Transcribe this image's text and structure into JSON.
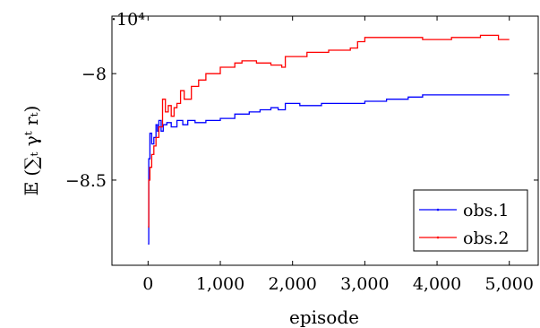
{
  "chart_data": {
    "type": "line",
    "title": "",
    "xlabel": "episode",
    "ylabel": "𝔼 (∑ₜ γᵗ rₜ)",
    "scale_label": "·10⁴",
    "xlim": [
      -500,
      5400
    ],
    "ylim": [
      -8.9,
      -7.73
    ],
    "xticks": [
      0,
      1000,
      2000,
      3000,
      4000,
      5000
    ],
    "xtick_labels": [
      "0",
      "1,000",
      "2,000",
      "3,000",
      "4,000",
      "5,000"
    ],
    "yticks": [
      -8,
      -8.5
    ],
    "ytick_labels": [
      "−8",
      "−8.5"
    ],
    "grid": false,
    "legend_position": "bottom-right",
    "series": [
      {
        "name": "obs.1",
        "color": "#0000ff",
        "x": [
          0,
          10,
          25,
          50,
          80,
          110,
          130,
          150,
          180,
          210,
          260,
          320,
          400,
          480,
          550,
          650,
          800,
          1000,
          1200,
          1400,
          1550,
          1700,
          1800,
          1900,
          2100,
          2400,
          2700,
          3000,
          3300,
          3600,
          3800,
          4000,
          4300,
          4600,
          4800,
          5000
        ],
        "y": [
          -8.8,
          -8.4,
          -8.28,
          -8.33,
          -8.3,
          -8.24,
          -8.27,
          -8.22,
          -8.27,
          -8.24,
          -8.23,
          -8.25,
          -8.22,
          -8.24,
          -8.22,
          -8.23,
          -8.22,
          -8.21,
          -8.19,
          -8.18,
          -8.17,
          -8.16,
          -8.17,
          -8.14,
          -8.15,
          -8.14,
          -8.14,
          -8.13,
          -8.12,
          -8.11,
          -8.1,
          -8.1,
          -8.1,
          -8.1,
          -8.1,
          -8.1
        ]
      },
      {
        "name": "obs.2",
        "color": "#ff0000",
        "x": [
          0,
          10,
          25,
          50,
          80,
          110,
          150,
          200,
          240,
          280,
          320,
          360,
          400,
          450,
          500,
          600,
          700,
          800,
          1000,
          1200,
          1300,
          1500,
          1700,
          1850,
          1900,
          2200,
          2500,
          2800,
          2900,
          3000,
          3200,
          3500,
          3800,
          4200,
          4600,
          4800,
          4850,
          5000
        ],
        "y": [
          -8.72,
          -8.5,
          -8.44,
          -8.38,
          -8.34,
          -8.3,
          -8.25,
          -8.12,
          -8.18,
          -8.15,
          -8.2,
          -8.16,
          -8.14,
          -8.08,
          -8.12,
          -8.06,
          -8.03,
          -8.0,
          -7.97,
          -7.95,
          -7.94,
          -7.95,
          -7.96,
          -7.97,
          -7.92,
          -7.9,
          -7.89,
          -7.88,
          -7.85,
          -7.83,
          -7.83,
          -7.83,
          -7.84,
          -7.83,
          -7.82,
          -7.82,
          -7.84,
          -7.84
        ]
      }
    ]
  }
}
